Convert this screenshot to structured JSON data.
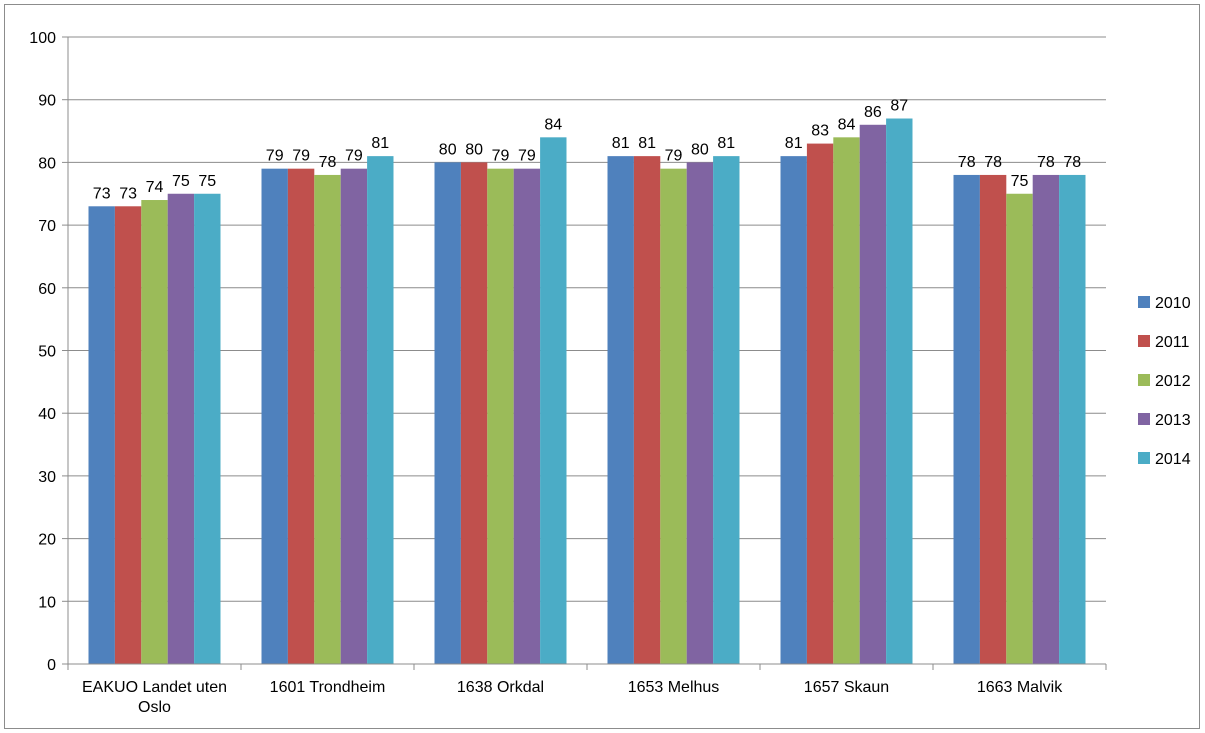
{
  "chart_data": {
    "type": "bar",
    "categories": [
      [
        "EAKUO Landet uten",
        "Oslo"
      ],
      [
        "1601 Trondheim"
      ],
      [
        "1638 Orkdal"
      ],
      [
        "1653 Melhus"
      ],
      [
        "1657 Skaun"
      ],
      [
        "1663 Malvik"
      ]
    ],
    "series": [
      {
        "name": "2010",
        "color": "#4F81BD",
        "values": [
          73,
          79,
          80,
          81,
          81,
          78
        ]
      },
      {
        "name": "2011",
        "color": "#C0504D",
        "values": [
          73,
          79,
          80,
          81,
          83,
          78
        ]
      },
      {
        "name": "2012",
        "color": "#9BBB59",
        "values": [
          74,
          78,
          79,
          79,
          84,
          75
        ]
      },
      {
        "name": "2013",
        "color": "#8064A2",
        "values": [
          75,
          79,
          79,
          80,
          86,
          78
        ]
      },
      {
        "name": "2014",
        "color": "#4BACC6",
        "values": [
          75,
          81,
          84,
          81,
          87,
          78
        ]
      }
    ],
    "yticks": [
      "0",
      "10",
      "20",
      "30",
      "40",
      "50",
      "60",
      "70",
      "80",
      "90",
      "100"
    ],
    "ylim": [
      0,
      100
    ],
    "grid": true,
    "data_labels": true,
    "legend": "right",
    "title": "",
    "xlabel": "",
    "ylabel": ""
  }
}
